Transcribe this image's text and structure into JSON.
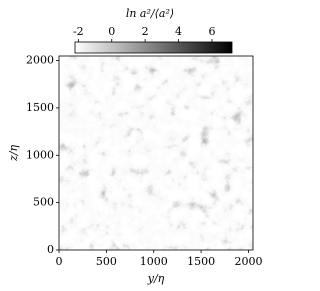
{
  "chart_data": {
    "type": "heatmap",
    "colorbar_label": "ln a²/⟨a²⟩",
    "colorbar_lim": [
      -2.2,
      7.2
    ],
    "colorbar_ticks": [
      -2,
      0,
      2,
      4,
      6
    ],
    "colorbar_colors": [
      "#ffffff",
      "#000000"
    ],
    "xlabel": "y/η",
    "ylabel": "z/η",
    "xlim": [
      0,
      2048
    ],
    "ylim": [
      0,
      2048
    ],
    "xticks": [
      0,
      500,
      1000,
      1500,
      2000
    ],
    "yticks": [
      0,
      500,
      1000,
      1500,
      2000
    ]
  }
}
